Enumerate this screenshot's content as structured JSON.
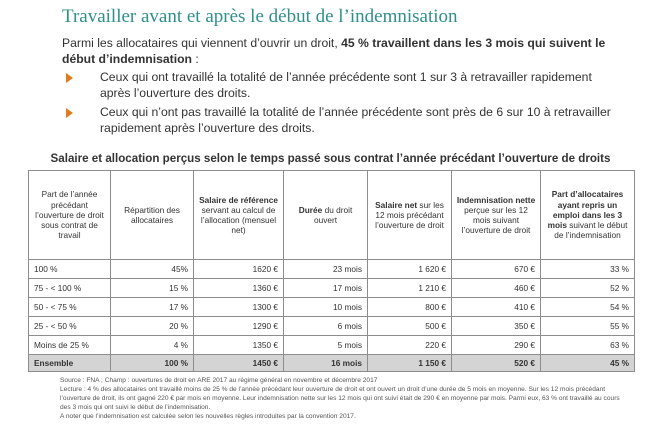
{
  "title": "Travailler avant et après le début de l’indemnisation",
  "intro": {
    "prefix": "Parmi les allocataires qui viennent d’ouvrir un droit, ",
    "bold": "45 % travaillent dans les 3 mois qui suivent le début d’indemnisation",
    "suffix": " :"
  },
  "bullets": [
    "Ceux qui ont travaillé la totalité de l’année précédente sont 1 sur 3 à retravailler rapidement après l’ouverture des droits.",
    "Ceux qui n’ont pas travaillé la totalité de l’année précédente sont près de 6 sur 10 à retravailler rapidement après l’ouverture des droits."
  ],
  "table_title": "Salaire et allocation perçus selon le temps passé sous contrat l’année précédant l’ouverture de droits",
  "headers": {
    "h1": "Part de l’année précédant l’ouverture de droit sous contrat de travail",
    "h2": "Répartition des allocataires",
    "h3_bold": "Salaire de référence",
    "h3_rest": "servant au calcul de l’allocation (mensuel net)",
    "h4_bold": "Durée",
    "h4_rest": "du droit ouvert",
    "h5_bold": "Salaire net",
    "h5_rest": "sur les 12 mois précédant l’ouverture de droit",
    "h6_bold": "Indemnisation nette",
    "h6_rest": "perçue sur les 12 mois suivant l’ouverture de droit",
    "h7_bold": "Part d’allocataires ayant repris un emploi dans les 3 mois",
    "h7_rest": "suivant le début de l’indemnisation"
  },
  "rows": [
    {
      "label": "100 %",
      "repartition": "45%",
      "salaire_ref": "1620 €",
      "duree": "23 mois",
      "salaire_net": "1 620 €",
      "indemnisation": "670 €",
      "reprise": "33 %"
    },
    {
      "label": "75 - < 100 %",
      "repartition": "15 %",
      "salaire_ref": "1360 €",
      "duree": "17 mois",
      "salaire_net": "1 210 €",
      "indemnisation": "460 €",
      "reprise": "52 %"
    },
    {
      "label": "50 - < 75 %",
      "repartition": "17 %",
      "salaire_ref": "1300 €",
      "duree": "10 mois",
      "salaire_net": "800 €",
      "indemnisation": "410 €",
      "reprise": "54 %"
    },
    {
      "label": "25 - < 50 %",
      "repartition": "20 %",
      "salaire_ref": "1290 €",
      "duree": "6 mois",
      "salaire_net": "500 €",
      "indemnisation": "350 €",
      "reprise": "55 %"
    },
    {
      "label": "Moins de 25 %",
      "repartition": "4 %",
      "salaire_ref": "1350 €",
      "duree": "5 mois",
      "salaire_net": "220 €",
      "indemnisation": "290 €",
      "reprise": "63 %"
    }
  ],
  "total": {
    "label": "Ensemble",
    "repartition": "100 %",
    "salaire_ref": "1450 €",
    "duree": "16 mois",
    "salaire_net": "1 150 €",
    "indemnisation": "520 €",
    "reprise": "45 %"
  },
  "notes": {
    "source": "Source : FNA ; Champ : ouvertures de droit en ARE 2017 au régime général en novembre et décembre 2017",
    "lecture": "Lecture : 4 % des allocataires ont travaillé moins de 25 % de l’année précédant leur ouverture de droit et ont ouvert un droit d’une durée de 5 mois en moyenne. Sur les 12 mois précédant l’ouverture de droit, ils ont gagné 220 € par mois en moyenne. Leur indemnisation nette sur les 12 mois qui ont suivi était de 290 € en moyenne par mois. Parmi eux, 63 % ont travaillé au cours des 3 mois qui ont suivi le début de l’indemnisation.",
    "note": "A noter que l’indemnisation est calculée selon les nouvelles règles introduites par la convention 2017."
  }
}
